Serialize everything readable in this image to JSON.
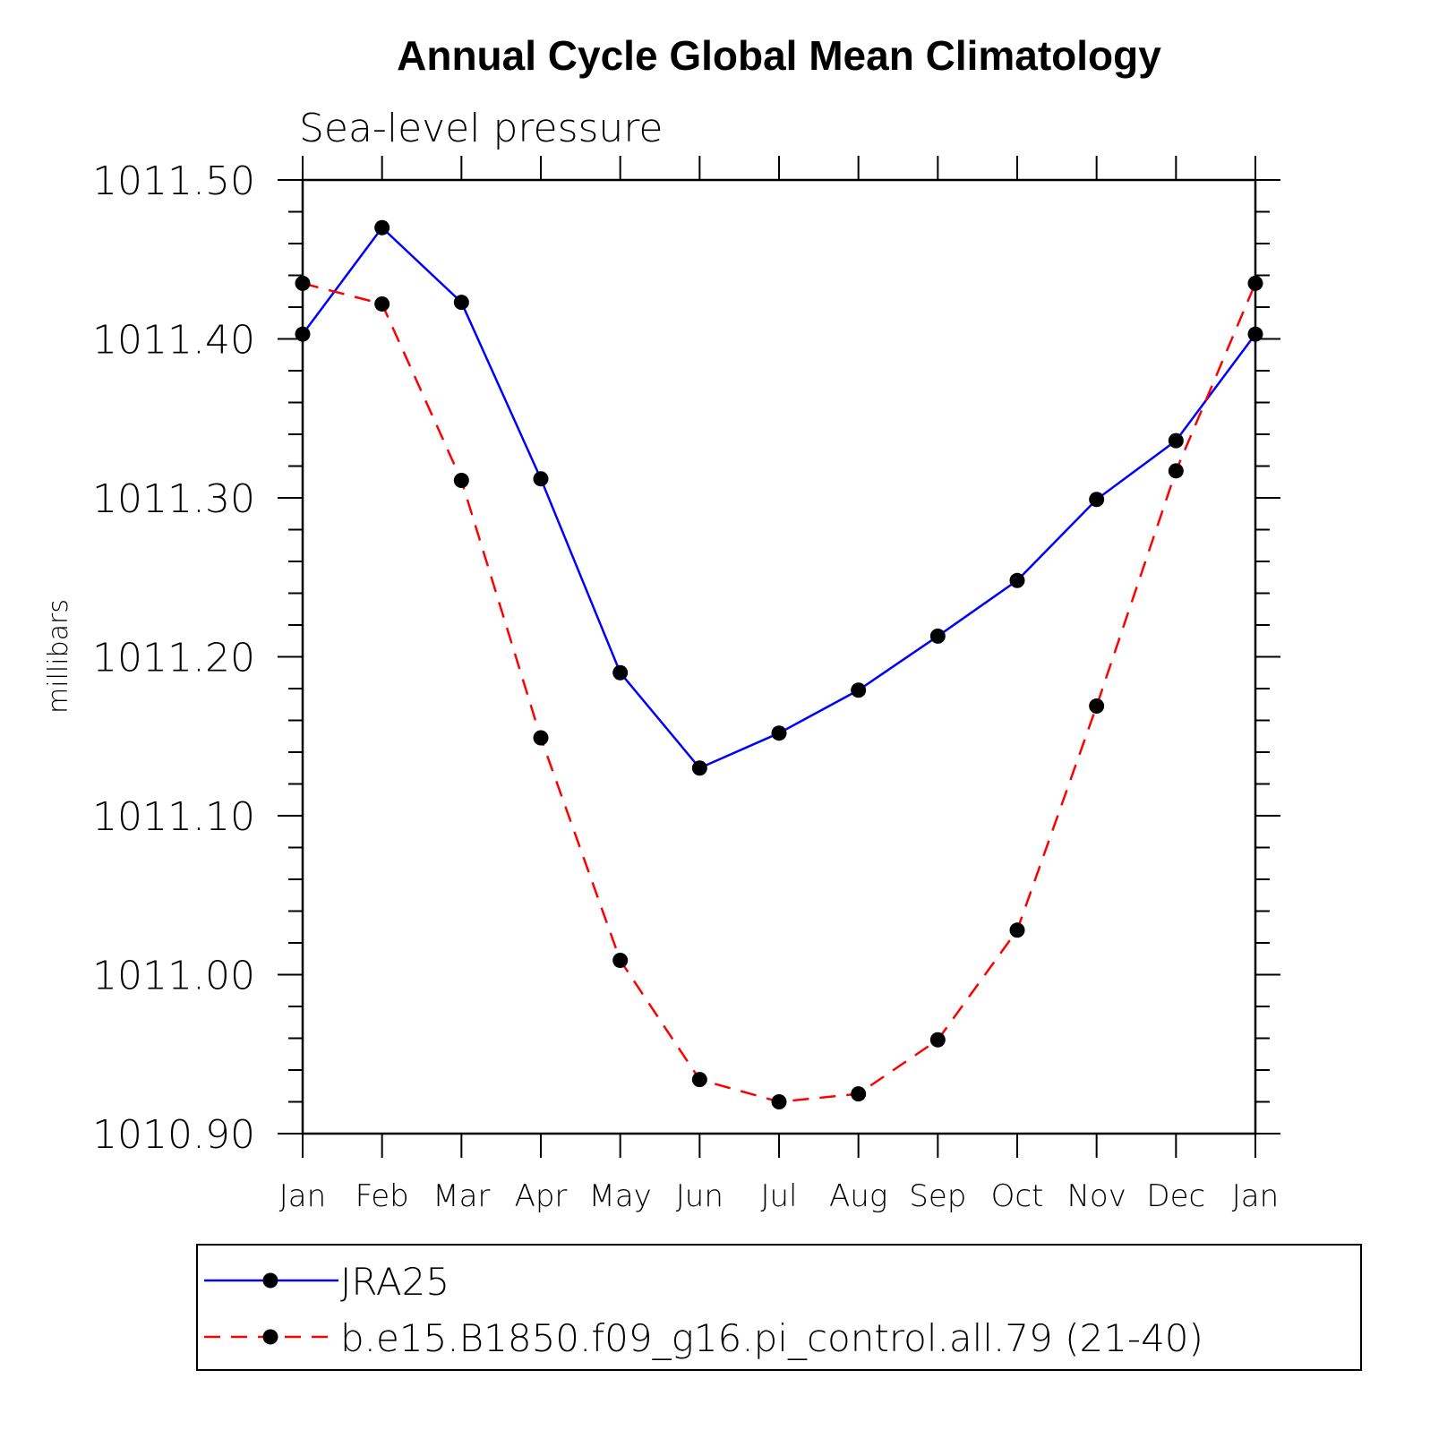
{
  "chart_data": {
    "type": "line",
    "title": "Annual Cycle Global Mean Climatology",
    "subtitle": "Sea-level pressure",
    "xlabel": "",
    "ylabel": "millibars",
    "categories": [
      "Jan",
      "Feb",
      "Mar",
      "Apr",
      "May",
      "Jun",
      "Jul",
      "Aug",
      "Sep",
      "Oct",
      "Nov",
      "Dec",
      "Jan"
    ],
    "ylim": [
      1010.9,
      1011.5
    ],
    "yticks": [
      "1011.50",
      "1011.40",
      "1011.30",
      "1011.20",
      "1011.10",
      "1011.00",
      "1010.90"
    ],
    "grid": false,
    "legend_position": "bottom",
    "series": [
      {
        "name": "JRA25",
        "color": "#0000ff",
        "dash": "solid",
        "values": [
          1011.403,
          1011.47,
          1011.423,
          1011.312,
          1011.19,
          1011.13,
          1011.152,
          1011.179,
          1011.213,
          1011.248,
          1011.299,
          1011.336,
          1011.403
        ]
      },
      {
        "name": "b.e15.B1850.f09_g16.pi_control.all.79 (21-40)",
        "color": "#ff0000",
        "dash": "dashed",
        "values": [
          1011.435,
          1011.422,
          1011.311,
          1011.149,
          1011.009,
          1010.934,
          1010.92,
          1010.925,
          1010.959,
          1011.028,
          1011.169,
          1011.317,
          1011.435
        ]
      }
    ]
  }
}
